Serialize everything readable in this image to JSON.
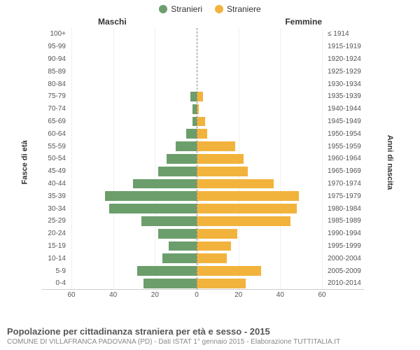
{
  "legend": {
    "male": {
      "label": "Stranieri",
      "color": "#6c9e6c"
    },
    "female": {
      "label": "Straniere",
      "color": "#f2b33d"
    }
  },
  "subtitles": {
    "left": "Maschi",
    "right": "Femmine"
  },
  "yAxisTitles": {
    "left": "Fasce di età",
    "right": "Anni di nascita"
  },
  "xAxis": {
    "max": 60,
    "ticks_left": [
      60,
      40,
      20,
      0
    ],
    "ticks_right": [
      20,
      40,
      60
    ]
  },
  "colors": {
    "male_bar": "#6c9e6c",
    "female_bar": "#f2b33d",
    "background": "#ffffff",
    "grid": "#f0f0f0",
    "center_line": "#888888",
    "text": "#555555"
  },
  "rows": [
    {
      "age": "100+",
      "birth": "≤ 1914",
      "m": 0,
      "f": 0
    },
    {
      "age": "95-99",
      "birth": "1915-1919",
      "m": 0,
      "f": 0
    },
    {
      "age": "90-94",
      "birth": "1920-1924",
      "m": 0,
      "f": 0
    },
    {
      "age": "85-89",
      "birth": "1925-1929",
      "m": 0,
      "f": 0
    },
    {
      "age": "80-84",
      "birth": "1930-1934",
      "m": 0,
      "f": 0
    },
    {
      "age": "75-79",
      "birth": "1935-1939",
      "m": 3,
      "f": 3
    },
    {
      "age": "70-74",
      "birth": "1940-1944",
      "m": 2,
      "f": 1
    },
    {
      "age": "65-69",
      "birth": "1945-1949",
      "m": 2,
      "f": 4
    },
    {
      "age": "60-64",
      "birth": "1950-1954",
      "m": 5,
      "f": 5
    },
    {
      "age": "55-59",
      "birth": "1955-1959",
      "m": 10,
      "f": 18
    },
    {
      "age": "50-54",
      "birth": "1960-1964",
      "m": 14,
      "f": 22
    },
    {
      "age": "45-49",
      "birth": "1965-1969",
      "m": 18,
      "f": 24
    },
    {
      "age": "40-44",
      "birth": "1970-1974",
      "m": 30,
      "f": 36
    },
    {
      "age": "35-39",
      "birth": "1975-1979",
      "m": 43,
      "f": 48
    },
    {
      "age": "30-34",
      "birth": "1980-1984",
      "m": 41,
      "f": 47
    },
    {
      "age": "25-29",
      "birth": "1985-1989",
      "m": 26,
      "f": 44
    },
    {
      "age": "20-24",
      "birth": "1990-1994",
      "m": 18,
      "f": 19
    },
    {
      "age": "15-19",
      "birth": "1995-1999",
      "m": 13,
      "f": 16
    },
    {
      "age": "10-14",
      "birth": "2000-2004",
      "m": 16,
      "f": 14
    },
    {
      "age": "5-9",
      "birth": "2005-2009",
      "m": 28,
      "f": 30
    },
    {
      "age": "0-4",
      "birth": "2010-2014",
      "m": 25,
      "f": 23
    }
  ],
  "footer": {
    "title": "Popolazione per cittadinanza straniera per età e sesso - 2015",
    "subtitle": "COMUNE DI VILLAFRANCA PADOVANA (PD) - Dati ISTAT 1° gennaio 2015 - Elaborazione TUTTITALIA.IT"
  }
}
